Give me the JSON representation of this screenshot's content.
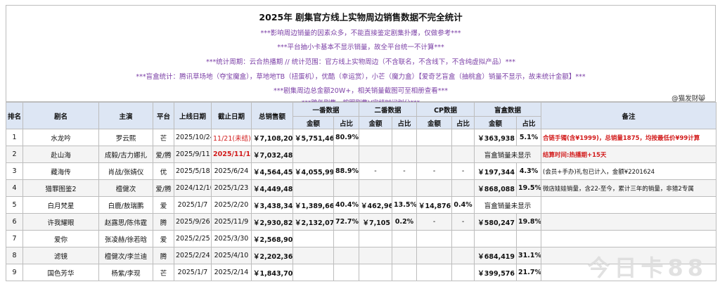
{
  "header": {
    "title": "2025年 剧集官方线上实物周边销售数据不完全统计",
    "notes": [
      "***影响周边销量的因素众多，不能直接鉴定剧集扑爆，仅做参考***",
      "***平台抽小卡基本不显示销量，故全平台统一不计算***",
      "***统计周期：云合热播期 // 统计范围：官方线上实物周边（不含联名，不含线下，不含纯虚拟产品）***",
      "***盲盒统计：腾讯草场地（夺宝魔盒），草地地TB（扭蛋机），优酷（幸运赏），小芒（魔力盒）【爱奇艺盲盒（抽桃盒）销量不显示，故未统计金额】***",
      "***剧集周边总金额20W+，相关销量截图可至相册查看***",
      "***跨年剧集，按照剧集V完结时间划分***"
    ],
    "author": "@猫发财😸"
  },
  "columns": {
    "rank": "排名",
    "drama": "剧名",
    "cast": "主演",
    "platform": "平台",
    "start": "上线日期",
    "end": "截止日期",
    "total": "总销售额",
    "first": "一番数据",
    "second": "二番数据",
    "cp": "CP数据",
    "blind": "盲盒数据",
    "remark": "备注",
    "amount": "金额",
    "share": "占比"
  },
  "rows": [
    {
      "rank": "1",
      "drama": "水龙吟",
      "cast": "罗云熙",
      "platform": "芒",
      "start": "2025/10/24",
      "end": "11/21(未结)",
      "total": "￥7,108,203",
      "f_amt": "￥5,751,464",
      "f_pct": "80.9%",
      "s_amt": "",
      "s_pct": "",
      "c_amt": "",
      "c_pct": "",
      "b_amt": "￥363,938",
      "b_pct": "5.1%",
      "remark": "合链手镯(含¥1999)，总销量1875，均按最低价¥99计算"
    },
    {
      "rank": "2",
      "drama": "赴山海",
      "cast": "成毅/古力娜扎",
      "platform": "爱/腾",
      "start": "2025/9/11",
      "end": "2025/11/16",
      "total": "￥7,032,486",
      "f_amt": "",
      "f_pct": "",
      "s_amt": "",
      "s_pct": "",
      "c_amt": "",
      "c_pct": "",
      "b_amt": "盲盒销量未显示",
      "b_pct": "",
      "remark": "结算时间:热播期+15天"
    },
    {
      "rank": "3",
      "drama": "藏海传",
      "cast": "肖战/张婧仪",
      "platform": "优",
      "start": "2025/5/18",
      "end": "2025/6/24",
      "total": "￥4,564,455",
      "f_amt": "￥4,055,995",
      "f_pct": "88.9%",
      "s_amt": "-",
      "s_pct": "-",
      "c_amt": "-",
      "c_pct": "-",
      "b_amt": "￥197,344",
      "b_pct": "4.3%",
      "remark": "(会员+手办)礼包已计入，金额¥2201624"
    },
    {
      "rank": "4",
      "drama": "猎罪图鉴2",
      "cast": "檀健次",
      "platform": "爱/腾",
      "start": "2024/12/10",
      "end": "2025/1/23",
      "total": "￥4,449,485",
      "f_amt": "",
      "f_pct": "",
      "s_amt": "",
      "s_pct": "",
      "c_amt": "",
      "c_pct": "",
      "b_amt": "￥868,088",
      "b_pct": "19.5%",
      "remark": "微店娃娃销量，含22-至今，累计三年的销量，非猎2专属"
    },
    {
      "rank": "5",
      "drama": "白月梵星",
      "cast": "白鹿/敖瑞鹏",
      "platform": "爱",
      "start": "2025/1/7",
      "end": "2025/2/20",
      "total": "￥3,438,347",
      "f_amt": "￥1,389,664",
      "f_pct": "40.4%",
      "s_amt": "￥462,967",
      "s_pct": "13.5%",
      "c_amt": "￥14,876",
      "c_pct": "0.4%",
      "b_amt": "盲盒销量未显示",
      "b_pct": "",
      "remark": ""
    },
    {
      "rank": "6",
      "drama": "许我耀眼",
      "cast": "赵露思/陈伟霆",
      "platform": "腾",
      "start": "2025/9/26",
      "end": "2025/11/9",
      "total": "￥2,930,821",
      "f_amt": "￥2,132,073",
      "f_pct": "72.7%",
      "s_amt": "￥7,105",
      "s_pct": "0.2%",
      "c_amt": "-",
      "c_pct": "-",
      "b_amt": "￥580,247",
      "b_pct": "19.8%",
      "remark": ""
    },
    {
      "rank": "7",
      "drama": "爱你",
      "cast": "张凌赫/徐若晗",
      "platform": "爱",
      "start": "2025/2/25",
      "end": "2025/3/30",
      "total": "￥2,568,902",
      "f_amt": "",
      "f_pct": "",
      "s_amt": "",
      "s_pct": "",
      "c_amt": "",
      "c_pct": "",
      "b_amt": "",
      "b_pct": "",
      "remark": ""
    },
    {
      "rank": "8",
      "drama": "滤镜",
      "cast": "檀健次/李兰迪",
      "platform": "腾",
      "start": "2025/2/24",
      "end": "2025/4/10",
      "total": "￥2,202,366",
      "f_amt": "",
      "f_pct": "",
      "s_amt": "",
      "s_pct": "",
      "c_amt": "",
      "c_pct": "",
      "b_amt": "￥684,419",
      "b_pct": "31.1%",
      "remark": ""
    },
    {
      "rank": "9",
      "drama": "国色芳华",
      "cast": "杨紫/李现",
      "platform": "芒",
      "start": "2025/1/7",
      "end": "2025/2/14",
      "total": "￥1,843,709",
      "f_amt": "",
      "f_pct": "",
      "s_amt": "",
      "s_pct": "",
      "c_amt": "",
      "c_pct": "",
      "b_amt": "￥399,576",
      "b_pct": "21.7%",
      "remark": ""
    }
  ],
  "watermark": "今日卡88"
}
